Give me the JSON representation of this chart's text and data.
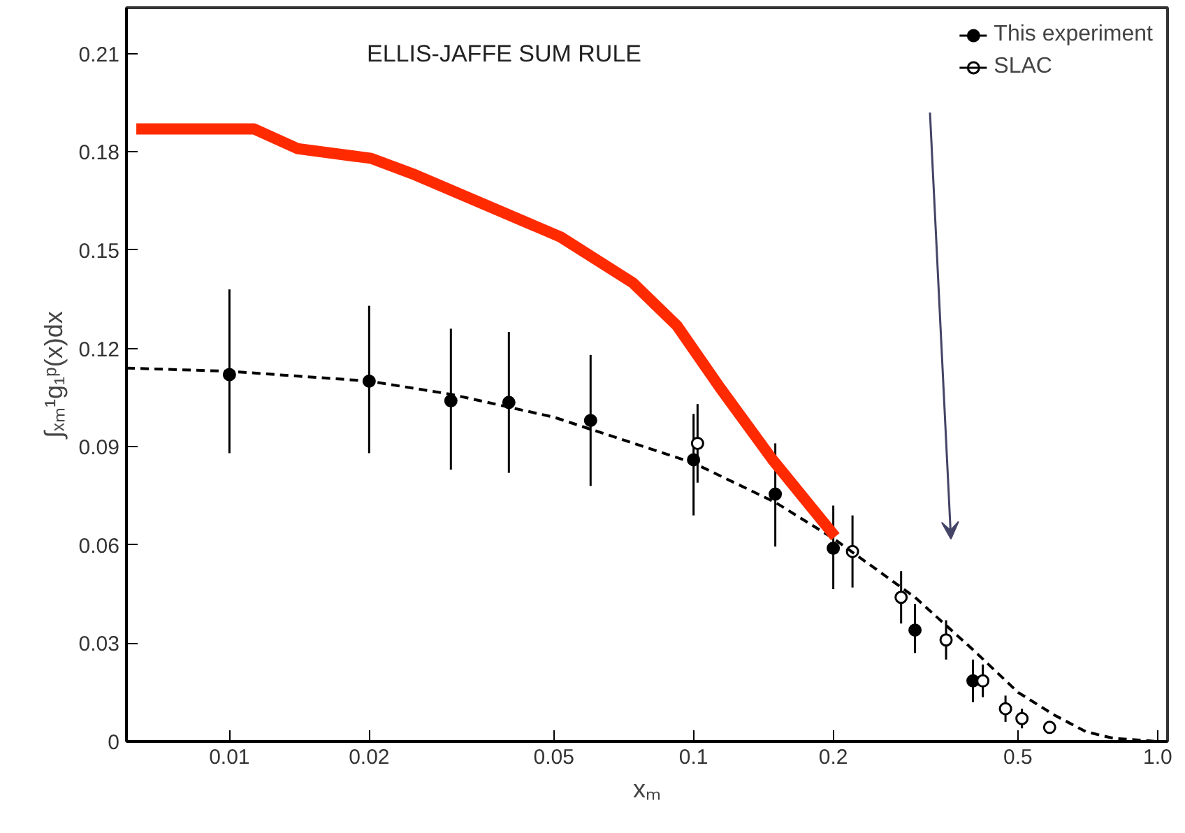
{
  "chart_data": {
    "type": "scatter",
    "xlabel": "xₘ",
    "ylabel": "∫ₓₘ¹g₁ᵖ(x)dx",
    "log": "x",
    "xlim": [
      0.006,
      1.05
    ],
    "ylim": [
      0,
      0.224
    ],
    "xticks": [
      0.01,
      0.02,
      0.05,
      0.1,
      0.2,
      0.5,
      {
        "value": 1.0,
        "label": "1.0"
      }
    ],
    "yticks": [
      {
        "value": 0,
        "label": "0"
      },
      {
        "value": 0.03,
        "label": "0.03"
      },
      {
        "value": 0.06,
        "label": "0.06"
      },
      {
        "value": 0.09,
        "label": "0.09"
      },
      {
        "value": 0.12,
        "label": "0.12"
      },
      {
        "value": 0.15,
        "label": "0.15"
      },
      {
        "value": 0.18,
        "label": "0.18"
      },
      {
        "value": 0.21,
        "label": "0.21"
      }
    ],
    "grid": false,
    "legend": "top right",
    "annotations": [
      "ELLIS-JAFFE SUM RULE"
    ],
    "series": [
      {
        "name": "This experiment",
        "marker": "circle",
        "color": "#000000",
        "x": [
          0.01,
          0.02,
          0.03,
          0.04,
          0.06,
          0.1,
          0.15,
          0.2,
          0.3,
          0.4
        ],
        "values": [
          0.112,
          0.11,
          0.104,
          0.1035,
          0.098,
          0.086,
          0.0755,
          0.059,
          0.034,
          0.0185
        ],
        "errors": [
          [
            0.088,
            0.138
          ],
          [
            0.088,
            0.133
          ],
          [
            0.083,
            0.126
          ],
          [
            0.082,
            0.125
          ],
          [
            0.078,
            0.118
          ],
          [
            0.069,
            0.1
          ],
          [
            0.0595,
            0.091
          ],
          [
            0.0465,
            0.072
          ],
          [
            0.027,
            0.042
          ],
          [
            0.012,
            0.025
          ]
        ]
      },
      {
        "name": "SLAC",
        "marker": "circle",
        "color": "#ffffff",
        "x": [
          0.102,
          0.22,
          0.28,
          0.35,
          0.42,
          0.47,
          0.51,
          0.585
        ],
        "values": [
          0.091,
          0.058,
          0.044,
          0.031,
          0.0185,
          0.01,
          0.007,
          0.0043
        ],
        "errors": [
          [
            0.079,
            0.103
          ],
          [
            0.047,
            0.069
          ],
          [
            0.036,
            0.052
          ],
          [
            0.025,
            0.037
          ],
          [
            0.0135,
            0.0235
          ],
          [
            0.006,
            0.014
          ],
          [
            0.004,
            0.01
          ],
          null
        ]
      },
      {
        "type": "line",
        "line_style": "dashed",
        "color": "#000000",
        "x": [
          0.006,
          0.01,
          0.02,
          0.03,
          0.05,
          0.1,
          0.15,
          0.2,
          0.3,
          0.4,
          0.5,
          0.6,
          0.7,
          0.8,
          1.0
        ],
        "values": [
          0.114,
          0.113,
          0.11,
          0.106,
          0.099,
          0.085,
          0.073,
          0.062,
          0.044,
          0.028,
          0.015,
          0.008,
          0.003,
          0.001,
          0.0
        ]
      },
      {
        "type": "line",
        "line_style": "solid",
        "color": "#ff2a00",
        "x": [
          0.0063,
          0.0113,
          0.014,
          0.0202,
          0.0251,
          0.0517,
          0.074,
          0.092,
          0.114,
          0.148,
          0.202
        ],
        "values": [
          0.187,
          0.187,
          0.181,
          0.178,
          0.173,
          0.154,
          0.14,
          0.127,
          0.108,
          0.086,
          0.0625
        ]
      }
    ]
  }
}
